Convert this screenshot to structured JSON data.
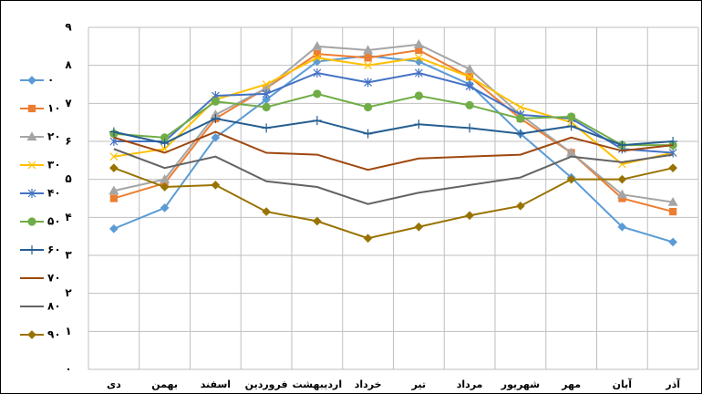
{
  "chart_data": {
    "type": "line",
    "categories": [
      "دی",
      "بهمن",
      "اسفند",
      "فروردین",
      "اردیبهشت",
      "خرداد",
      "تیر",
      "مرداد",
      "شهریور",
      "مهر",
      "آبان",
      "آذر"
    ],
    "ylim": [
      0,
      9
    ],
    "yticks": [
      {
        "value": 0,
        "label": "۰"
      },
      {
        "value": 1,
        "label": "۱"
      },
      {
        "value": 2,
        "label": "۲"
      },
      {
        "value": 3,
        "label": "۳"
      },
      {
        "value": 4,
        "label": "۴"
      },
      {
        "value": 5,
        "label": "۵"
      },
      {
        "value": 6,
        "label": "۶"
      },
      {
        "value": 7,
        "label": "۷"
      },
      {
        "value": 8,
        "label": "۸"
      },
      {
        "value": 9,
        "label": "۹"
      }
    ],
    "grid": true,
    "legend": "left",
    "series": [
      {
        "name": "۰",
        "color": "#5b9bd5",
        "marker": "diamond",
        "values": [
          3.7,
          4.25,
          6.1,
          7.1,
          8.1,
          8.25,
          8.1,
          7.5,
          6.2,
          5.05,
          3.75,
          3.35
        ]
      },
      {
        "name": "۱۰",
        "color": "#ed7d31",
        "marker": "square",
        "values": [
          4.5,
          4.9,
          6.6,
          7.4,
          8.3,
          8.2,
          8.4,
          7.7,
          6.6,
          5.7,
          4.5,
          4.15
        ]
      },
      {
        "name": "۲۰",
        "color": "#a5a5a5",
        "marker": "triangle",
        "values": [
          4.7,
          5.0,
          6.7,
          7.4,
          8.5,
          8.4,
          8.55,
          7.9,
          6.7,
          5.7,
          4.6,
          4.4
        ]
      },
      {
        "name": "۳۰",
        "color": "#ffc000",
        "marker": "x",
        "values": [
          5.6,
          5.8,
          7.1,
          7.5,
          8.2,
          8.0,
          8.2,
          7.7,
          6.9,
          6.5,
          5.4,
          5.7
        ]
      },
      {
        "name": "۴۰",
        "color": "#4472c4",
        "marker": "star",
        "values": [
          6.0,
          6.0,
          7.2,
          7.25,
          7.8,
          7.55,
          7.8,
          7.45,
          6.7,
          6.6,
          5.8,
          5.7
        ]
      },
      {
        "name": "۵۰",
        "color": "#70ad47",
        "marker": "circle",
        "values": [
          6.2,
          6.1,
          7.05,
          6.9,
          7.25,
          6.9,
          7.2,
          6.95,
          6.6,
          6.65,
          5.9,
          5.9
        ]
      },
      {
        "name": "۶۰",
        "color": "#255e91",
        "marker": "plus",
        "values": [
          6.25,
          5.95,
          6.6,
          6.35,
          6.55,
          6.2,
          6.45,
          6.35,
          6.2,
          6.4,
          5.9,
          6.0
        ]
      },
      {
        "name": "۷۰",
        "color": "#9e480e",
        "marker": "dash",
        "values": [
          6.1,
          5.7,
          6.25,
          5.7,
          5.65,
          5.25,
          5.55,
          5.6,
          5.65,
          6.1,
          5.75,
          5.9
        ]
      },
      {
        "name": "۸۰",
        "color": "#636363",
        "marker": "dash",
        "values": [
          5.8,
          5.3,
          5.6,
          4.95,
          4.8,
          4.35,
          4.65,
          4.85,
          5.05,
          5.6,
          5.45,
          5.65
        ]
      },
      {
        "name": "۹۰",
        "color": "#997300",
        "marker": "diamond",
        "values": [
          5.3,
          4.8,
          4.85,
          4.15,
          3.9,
          3.45,
          3.75,
          4.05,
          4.3,
          5.0,
          5.0,
          5.3
        ]
      }
    ]
  }
}
